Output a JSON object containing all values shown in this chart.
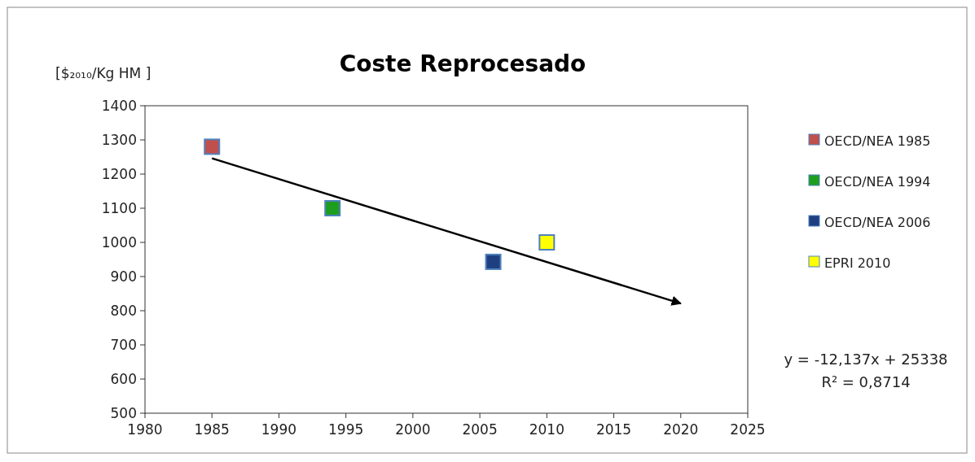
{
  "chart_data": {
    "type": "scatter",
    "title": "Coste Reprocesado",
    "ylabel": "[$₂₀₁₀/Kg HM ]",
    "xlim": [
      1980,
      2025
    ],
    "xticks": [
      1980,
      1985,
      1990,
      1995,
      2000,
      2005,
      2010,
      2015,
      2020,
      2025
    ],
    "ylim": [
      500,
      1400
    ],
    "yticks": [
      500,
      600,
      700,
      800,
      900,
      1000,
      1100,
      1200,
      1300,
      1400
    ],
    "grid": false,
    "legend": "right",
    "marker": "square",
    "series": [
      {
        "name": "OECD/NEA 1985",
        "color": "#c0504d",
        "x": [
          1985
        ],
        "values": [
          1280
        ]
      },
      {
        "name": "OECD/NEA 1994",
        "color": "#1e9e1e",
        "x": [
          1994
        ],
        "values": [
          1100
        ]
      },
      {
        "name": "OECD/NEA 2006",
        "color": "#1f4080",
        "x": [
          2006
        ],
        "values": [
          943
        ]
      },
      {
        "name": "EPRI 2010",
        "color": "#ffff00",
        "x": [
          2010
        ],
        "values": [
          1000
        ]
      },
      {
        "type": "line",
        "color": "#000000",
        "x": [
          1985,
          2020
        ],
        "values": [
          1246,
          821
        ],
        "marker": "none",
        "line_style": "solid"
      }
    ],
    "annotations": [
      "y = -12,137x + 25338",
      "R² = 0,8714"
    ]
  }
}
